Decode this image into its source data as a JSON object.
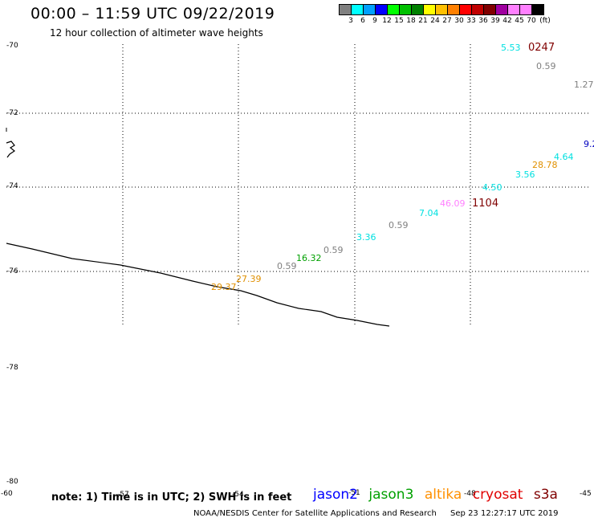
{
  "header": {
    "title": "00:00 – 11:59 UTC 09/22/2019",
    "subtitle": "12 hour collection of altimeter wave heights"
  },
  "legend": {
    "unit": "(ft)",
    "colors": [
      "#808080",
      "#00ffff",
      "#00a0ff",
      "#0000ff",
      "#00ff00",
      "#00c000",
      "#008000",
      "#ffff00",
      "#ffc000",
      "#ff8000",
      "#ff0000",
      "#c00000",
      "#800000",
      "#a000a0",
      "#ff80ff",
      "#ff80ff",
      "#000000"
    ],
    "labels": [
      "3",
      "6",
      "9",
      "12",
      "15",
      "18",
      "21",
      "24",
      "27",
      "30",
      "33",
      "36",
      "39",
      "42",
      "45",
      "70"
    ]
  },
  "map": {
    "lat_labels": [
      "-70",
      "-72",
      "-74",
      "-76",
      "-78",
      "-80"
    ],
    "lon_labels": [
      "-60",
      "-57",
      "-54",
      "-51",
      "-48",
      "-45"
    ],
    "wave_readings": [
      {
        "text": "5.53",
        "color": "#00e0e0"
      },
      {
        "text": "0.59",
        "color": "#808080"
      },
      {
        "text": "1.27",
        "color": "#808080"
      },
      {
        "text": "9.2",
        "color": "#0000c0"
      },
      {
        "text": "4.64",
        "color": "#00e0e0"
      },
      {
        "text": "28.78",
        "color": "#e09000"
      },
      {
        "text": "3.56",
        "color": "#00e0e0"
      },
      {
        "text": "4.50",
        "color": "#00e0e0"
      },
      {
        "text": "46.09",
        "color": "#ff80ff"
      },
      {
        "text": "7.04",
        "color": "#00e0e0"
      },
      {
        "text": "0.59",
        "color": "#808080"
      },
      {
        "text": "3.36",
        "color": "#00e0e0"
      },
      {
        "text": "0.59",
        "color": "#808080"
      },
      {
        "text": "16.32",
        "color": "#00a000"
      },
      {
        "text": "0.59",
        "color": "#808080"
      },
      {
        "text": "27.39",
        "color": "#e09000"
      },
      {
        "text": "29.37",
        "color": "#e09000"
      }
    ],
    "pass_times": [
      {
        "text": "0247",
        "color": "#800000"
      },
      {
        "text": "1104",
        "color": "#800000"
      }
    ]
  },
  "footer": {
    "note": "note: 1) Time is in UTC; 2) SWH is in feet",
    "satellites": [
      {
        "name": "jason2",
        "color": "#0000ff"
      },
      {
        "name": "jason3",
        "color": "#00a000"
      },
      {
        "name": "altika",
        "color": "#ff9000"
      },
      {
        "name": "cryosat",
        "color": "#e00000"
      },
      {
        "name": "s3a",
        "color": "#800000"
      }
    ],
    "credit": "NOAA/NESDIS Center for Satellite Applications and Research",
    "timestamp": "Sep 23 12:27:17 UTC 2019"
  }
}
